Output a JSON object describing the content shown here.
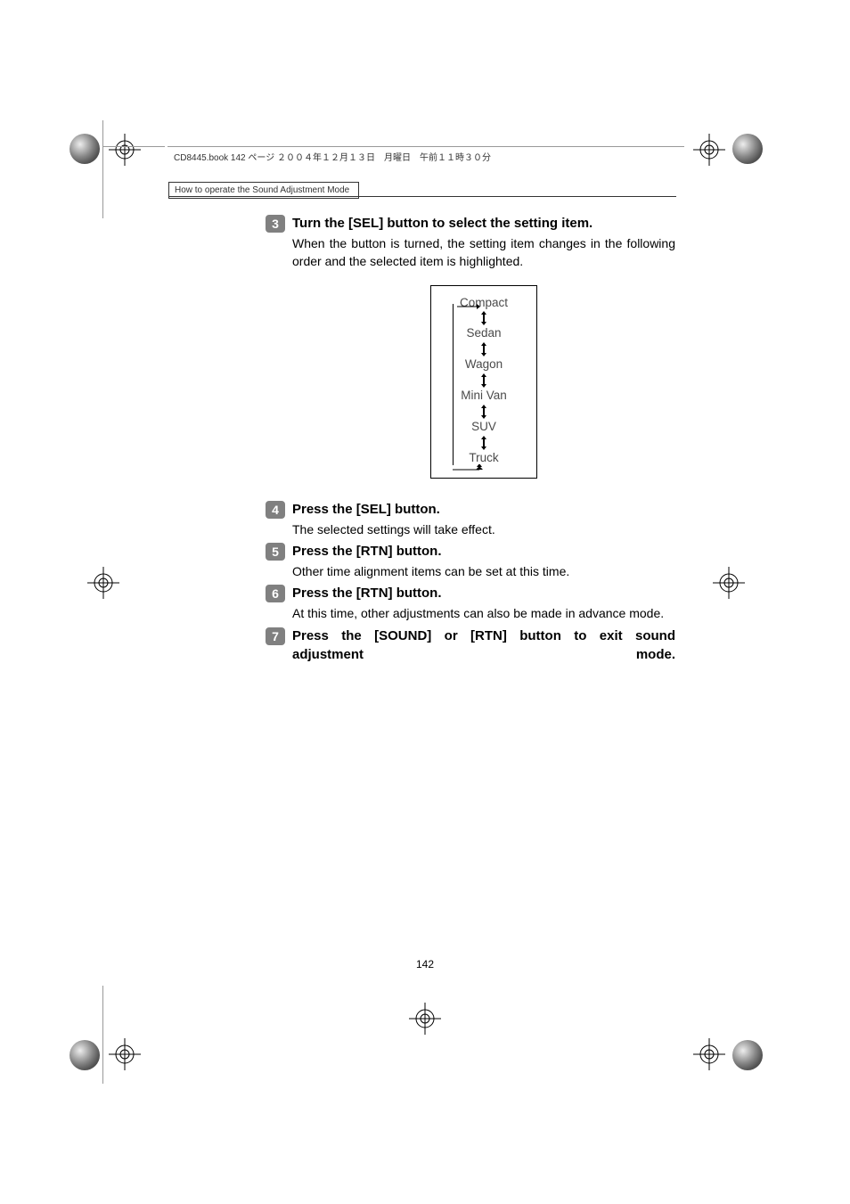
{
  "header_text": "CD8445.book  142 ページ  ２００４年１２月１３日　月曜日　午前１１時３０分",
  "section_label": "How to operate the Sound Adjustment Mode",
  "page_number": "142",
  "flow_items": [
    "Compact",
    "Sedan",
    "Wagon",
    "Mini Van",
    "SUV",
    "Truck"
  ],
  "steps": [
    {
      "num": "3",
      "title": "Turn the [SEL] button to select the setting item.",
      "title_spread": false,
      "desc": "When the button is turned, the setting item changes in the following order and the selected item is highlighted.",
      "show_flow": true
    },
    {
      "num": "4",
      "title": "Press the [SEL] button.",
      "title_spread": false,
      "desc": "The selected settings will take effect.",
      "show_flow": false
    },
    {
      "num": "5",
      "title": "Press the [RTN] button.",
      "title_spread": false,
      "desc": "Other time alignment items can be set at this time.",
      "show_flow": false
    },
    {
      "num": "6",
      "title": "Press the [RTN] button.",
      "title_spread": false,
      "desc": "At this time, other adjustments can also be made in advance mode.",
      "show_flow": false
    },
    {
      "num": "7",
      "title": "Press the [SOUND] or [RTN] button to exit sound adjustment mode.",
      "title_spread": true,
      "desc": "",
      "show_flow": false
    }
  ],
  "colors": {
    "step_num_bg": "#808080",
    "step_num_fg": "#ffffff",
    "text": "#000000",
    "flow_text": "#4a4a4a"
  }
}
